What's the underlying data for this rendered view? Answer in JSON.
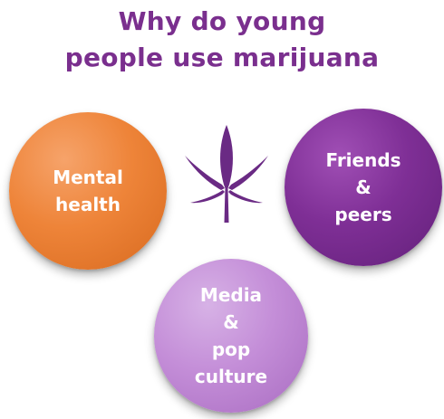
{
  "title": {
    "line1": "Why do young",
    "line2": "people use marijuana"
  },
  "circles": {
    "mental": {
      "line1": "Mental",
      "line2": "health"
    },
    "friends": {
      "line1": "Friends",
      "line2": "&",
      "line3": "peers"
    },
    "media": {
      "line1": "Media",
      "line2": "&",
      "line3": "pop",
      "line4": "culture"
    }
  },
  "icons": {
    "center": "cannabis-leaf-icon"
  },
  "colors": {
    "title": "#7a2f8e",
    "mental_health": "#ee8439",
    "friends_peers": "#7f2f96",
    "media_pop_culture": "#c48ed8",
    "leaf": "#6a2a84"
  }
}
